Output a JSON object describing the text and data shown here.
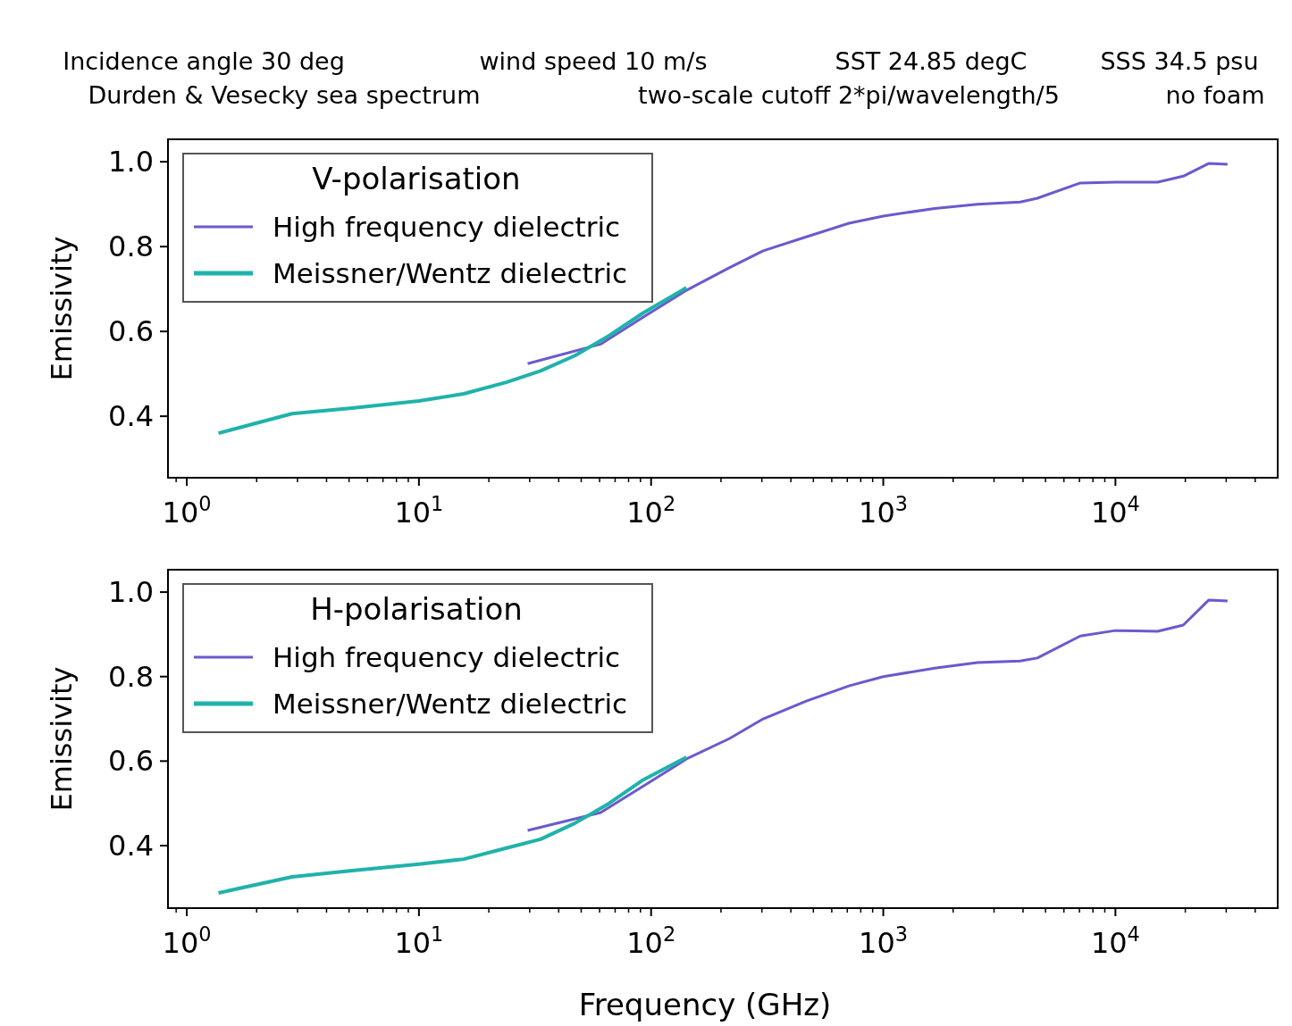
{
  "chart_data": [
    {
      "type": "line",
      "annotations": [
        "Incidence angle 30 deg",
        "wind speed 10 m/s",
        "SST 24.85 degC",
        "SSS 34.5 psu",
        "Durden & Vesecky sea spectrum",
        "two-scale cutoff 2*pi/wavelength/5",
        "no foam"
      ],
      "ylabel": "Emissivity",
      "legend_title": "V-polarisation",
      "legend": "top left",
      "log": "x",
      "grid": false,
      "xlim": [
        0.83,
        50000
      ],
      "ylim": [
        0.255,
        1.053
      ],
      "xticks": [
        {
          "value": 0.9,
          "label": null
        },
        {
          "value": 1,
          "label": "10$^{0}$"
        },
        {
          "value": 2,
          "label": null
        },
        {
          "value": 3,
          "label": null
        },
        {
          "value": 4,
          "label": null
        },
        {
          "value": 5,
          "label": null
        },
        {
          "value": 6,
          "label": null
        },
        {
          "value": 7,
          "label": null
        },
        {
          "value": 8,
          "label": null
        },
        {
          "value": 9,
          "label": null
        },
        {
          "value": 10,
          "label": "10$^{1}$"
        },
        {
          "value": 20,
          "label": null
        },
        {
          "value": 30,
          "label": null
        },
        {
          "value": 40,
          "label": null
        },
        {
          "value": 50,
          "label": null
        },
        {
          "value": 60,
          "label": null
        },
        {
          "value": 70,
          "label": null
        },
        {
          "value": 80,
          "label": null
        },
        {
          "value": 90,
          "label": null
        },
        {
          "value": 100,
          "label": "10$^{2}$"
        },
        {
          "value": 200,
          "label": null
        },
        {
          "value": 300,
          "label": null
        },
        {
          "value": 400,
          "label": null
        },
        {
          "value": 500,
          "label": null
        },
        {
          "value": 600,
          "label": null
        },
        {
          "value": 700,
          "label": null
        },
        {
          "value": 800,
          "label": null
        },
        {
          "value": 900,
          "label": null
        },
        {
          "value": 1000,
          "label": "10$^{3}$"
        },
        {
          "value": 2000,
          "label": null
        },
        {
          "value": 3000,
          "label": null
        },
        {
          "value": 4000,
          "label": null
        },
        {
          "value": 5000,
          "label": null
        },
        {
          "value": 6000,
          "label": null
        },
        {
          "value": 7000,
          "label": null
        },
        {
          "value": 8000,
          "label": null
        },
        {
          "value": 9000,
          "label": null
        },
        {
          "value": 10000,
          "label": "10$^{4}$"
        },
        {
          "value": 20000,
          "label": null
        },
        {
          "value": 30000,
          "label": null
        },
        {
          "value": 40000,
          "label": null
        }
      ],
      "yticks": [
        0.4,
        0.6,
        0.8,
        {
          "value": 1,
          "label": "1.0"
        }
      ],
      "series": [
        {
          "name": "High frequency dielectric",
          "color": "#6a5acd",
          "x": [
            29.4,
            60.6,
            92.7,
            142,
            217,
            304,
            466,
            712,
            1000,
            1665,
            2545,
            3890,
            4610,
            7060,
            10000,
            15200,
            19600,
            25200,
            30400
          ],
          "values": [
            0.524,
            0.57,
            0.634,
            0.697,
            0.75,
            0.79,
            0.823,
            0.855,
            0.872,
            0.89,
            0.9,
            0.905,
            0.914,
            0.95,
            0.952,
            0.952,
            0.966,
            0.996,
            0.994
          ]
        },
        {
          "name": "Meissner/Wentz dielectric",
          "color": "#20b2aa",
          "x": [
            1.37,
            2.84,
            5.15,
            10,
            15.6,
            23.8,
            33.4,
            47,
            65.9,
            92.7,
            142
          ],
          "values": [
            0.36,
            0.406,
            0.419,
            0.436,
            0.453,
            0.48,
            0.507,
            0.543,
            0.59,
            0.644,
            0.703
          ]
        }
      ]
    },
    {
      "type": "line",
      "xlabel": "Frequency (GHz)",
      "ylabel": "Emissivity",
      "legend_title": "H-polarisation",
      "legend": "top left",
      "log": "x",
      "grid": false,
      "xlim": [
        0.83,
        50000
      ],
      "ylim": [
        0.252,
        1.053
      ],
      "xticks": [
        {
          "value": 0.9,
          "label": null
        },
        {
          "value": 1,
          "label": "10$^{0}$"
        },
        {
          "value": 2,
          "label": null
        },
        {
          "value": 3,
          "label": null
        },
        {
          "value": 4,
          "label": null
        },
        {
          "value": 5,
          "label": null
        },
        {
          "value": 6,
          "label": null
        },
        {
          "value": 7,
          "label": null
        },
        {
          "value": 8,
          "label": null
        },
        {
          "value": 9,
          "label": null
        },
        {
          "value": 10,
          "label": "10$^{1}$"
        },
        {
          "value": 20,
          "label": null
        },
        {
          "value": 30,
          "label": null
        },
        {
          "value": 40,
          "label": null
        },
        {
          "value": 50,
          "label": null
        },
        {
          "value": 60,
          "label": null
        },
        {
          "value": 70,
          "label": null
        },
        {
          "value": 80,
          "label": null
        },
        {
          "value": 90,
          "label": null
        },
        {
          "value": 100,
          "label": "10$^{2}$"
        },
        {
          "value": 200,
          "label": null
        },
        {
          "value": 300,
          "label": null
        },
        {
          "value": 400,
          "label": null
        },
        {
          "value": 500,
          "label": null
        },
        {
          "value": 600,
          "label": null
        },
        {
          "value": 700,
          "label": null
        },
        {
          "value": 800,
          "label": null
        },
        {
          "value": 900,
          "label": null
        },
        {
          "value": 1000,
          "label": "10$^{3}$"
        },
        {
          "value": 2000,
          "label": null
        },
        {
          "value": 3000,
          "label": null
        },
        {
          "value": 4000,
          "label": null
        },
        {
          "value": 5000,
          "label": null
        },
        {
          "value": 6000,
          "label": null
        },
        {
          "value": 7000,
          "label": null
        },
        {
          "value": 8000,
          "label": null
        },
        {
          "value": 9000,
          "label": null
        },
        {
          "value": 10000,
          "label": "10$^{4}$"
        },
        {
          "value": 20000,
          "label": null
        },
        {
          "value": 30000,
          "label": null
        },
        {
          "value": 40000,
          "label": null
        }
      ],
      "yticks": [
        0.4,
        0.6,
        0.8,
        {
          "value": 1,
          "label": "1.0"
        }
      ],
      "series": [
        {
          "name": "High frequency dielectric",
          "color": "#6a5acd",
          "x": [
            29.4,
            60.6,
            92.7,
            142,
            217,
            304,
            466,
            712,
            1000,
            1665,
            2545,
            3890,
            4610,
            7060,
            10000,
            15200,
            19600,
            25200,
            30400
          ],
          "values": [
            0.436,
            0.478,
            0.541,
            0.605,
            0.653,
            0.7,
            0.742,
            0.778,
            0.8,
            0.82,
            0.833,
            0.837,
            0.844,
            0.896,
            0.909,
            0.907,
            0.922,
            0.981,
            0.979
          ]
        },
        {
          "name": "Meissner/Wentz dielectric",
          "color": "#20b2aa",
          "x": [
            1.37,
            2.84,
            5.15,
            10,
            15.6,
            23.8,
            33.4,
            47,
            65.9,
            92.7,
            142
          ],
          "values": [
            0.288,
            0.326,
            0.341,
            0.356,
            0.368,
            0.394,
            0.415,
            0.453,
            0.5,
            0.556,
            0.609
          ]
        }
      ]
    }
  ]
}
